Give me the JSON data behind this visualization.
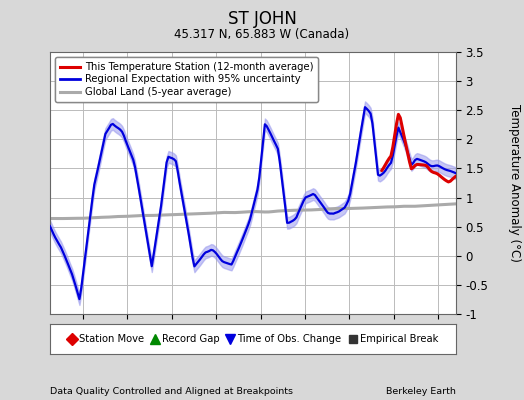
{
  "title": "ST JOHN",
  "subtitle": "45.317 N, 65.883 W (Canada)",
  "ylabel": "Temperature Anomaly (°C)",
  "xlabel_bottom_left": "Data Quality Controlled and Aligned at Breakpoints",
  "xlabel_bottom_right": "Berkeley Earth",
  "ylim": [
    -1.0,
    3.5
  ],
  "xlim_start": 1996.5,
  "xlim_end": 2014.8,
  "xticks": [
    1998,
    2000,
    2002,
    2004,
    2006,
    2008,
    2010,
    2012,
    2014
  ],
  "yticks": [
    -1.0,
    -0.5,
    0.0,
    0.5,
    1.0,
    1.5,
    2.0,
    2.5,
    3.0,
    3.5
  ],
  "bg_color": "#d8d8d8",
  "plot_bg_color": "#ffffff",
  "grid_color": "#bbbbbb",
  "blue_line_color": "#0000dd",
  "blue_fill_color": "#9999ee",
  "red_line_color": "#dd0000",
  "gray_line_color": "#aaaaaa",
  "red_start_year": 2011.4,
  "legend1_items": [
    {
      "label": "This Temperature Station (12-month average)",
      "color": "#dd0000",
      "lw": 2.5
    },
    {
      "label": "Regional Expectation with 95% uncertainty",
      "color": "#0000dd",
      "lw": 2.0
    },
    {
      "label": "Global Land (5-year average)",
      "color": "#aaaaaa",
      "lw": 2.5
    }
  ],
  "legend2_items": [
    {
      "label": "Station Move",
      "marker": "D",
      "color": "#dd0000"
    },
    {
      "label": "Record Gap",
      "marker": "^",
      "color": "#008800"
    },
    {
      "label": "Time of Obs. Change",
      "marker": "v",
      "color": "#0000dd"
    },
    {
      "label": "Empirical Break",
      "marker": "s",
      "color": "#333333"
    }
  ]
}
